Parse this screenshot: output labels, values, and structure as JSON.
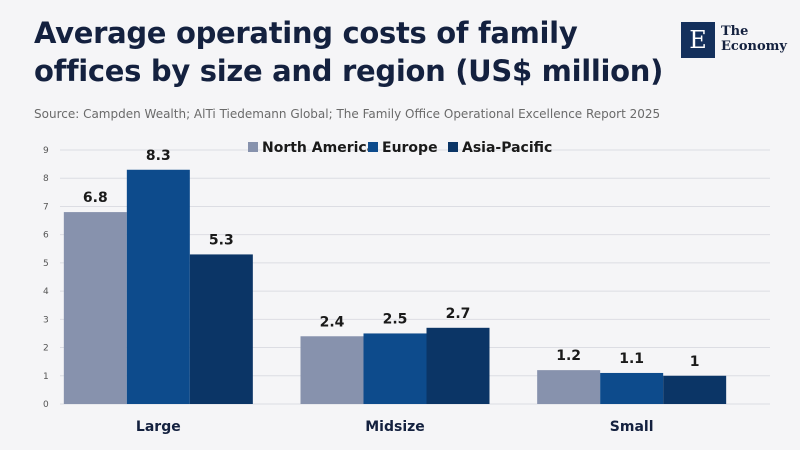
{
  "header": {
    "title": "Average operating costs of family offices by size and region (US$ million)",
    "source": "Source: Campden Wealth; AlTi Tiedemann Global; The Family Office Operational Excellence Report 2025"
  },
  "logo": {
    "mark": "E",
    "line1": "The",
    "line2": "Economy"
  },
  "chart_data": {
    "type": "bar",
    "title": "Average operating costs of family offices by size and region (US$ million)",
    "xlabel": "",
    "ylabel": "",
    "ylim": [
      0,
      9
    ],
    "yticks": [
      0,
      1,
      2,
      3,
      4,
      5,
      6,
      7,
      8,
      9
    ],
    "categories": [
      "Large",
      "Midsize",
      "Small"
    ],
    "legend_position": "top-center",
    "series": [
      {
        "name": "North America",
        "color": "#8792ad",
        "values": [
          6.8,
          2.4,
          1.2
        ]
      },
      {
        "name": "Europe",
        "color": "#0d4b8c",
        "values": [
          8.3,
          2.5,
          1.1
        ]
      },
      {
        "name": "Asia-Pacific",
        "color": "#0b3566",
        "values": [
          5.3,
          2.7,
          1
        ]
      }
    ]
  }
}
